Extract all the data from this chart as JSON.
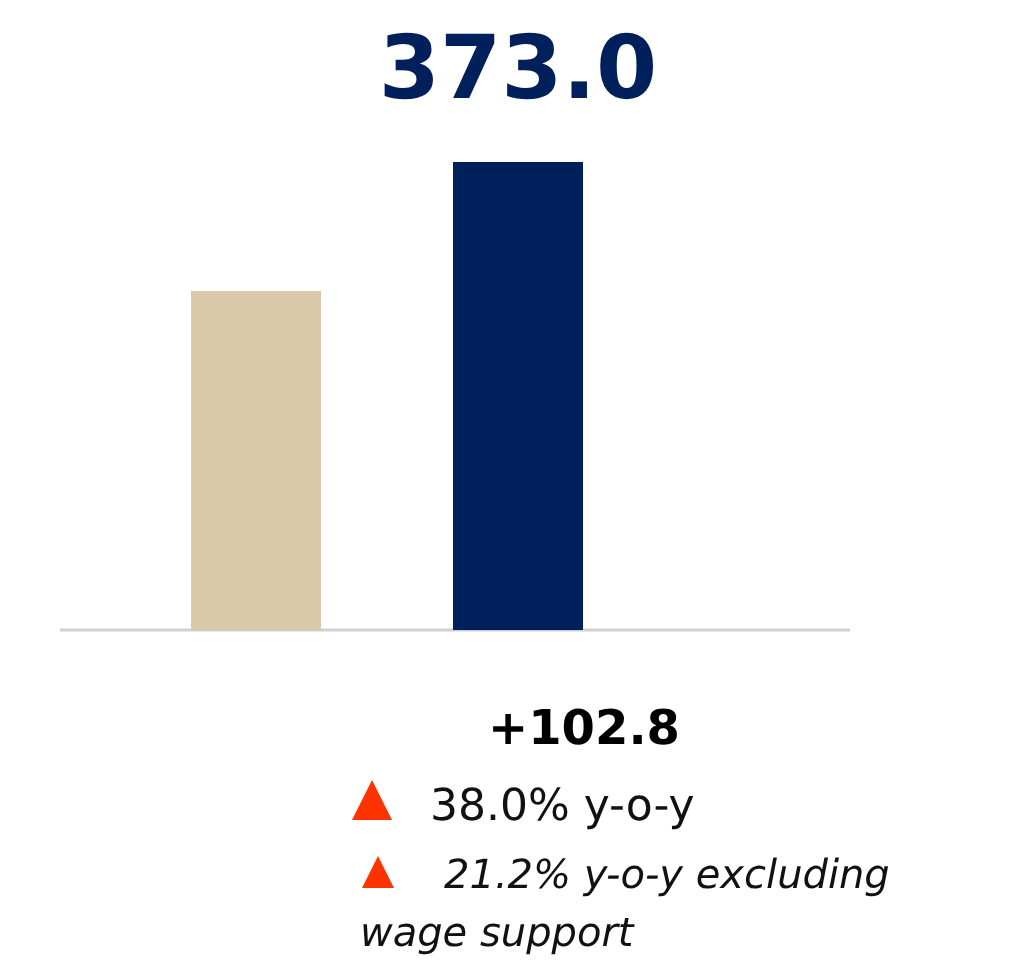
{
  "chart_data": {
    "type": "bar",
    "categories": [
      null,
      null
    ],
    "series": [
      {
        "values": [
          270.2,
          373.0
        ],
        "colors": [
          "#d9c9a8",
          "#00205b"
        ],
        "value_labels": [
          null,
          "373.0"
        ]
      }
    ],
    "annotations": [
      "+102.8",
      "38.0% y-o-y",
      "21.2% y-o-y excluding wage support"
    ]
  }
}
